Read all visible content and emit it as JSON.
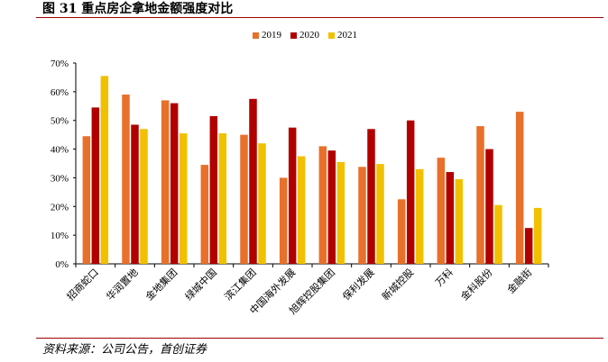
{
  "figure": {
    "title": "图 31 重点房企拿地金额强度对比",
    "source": "资料来源：公司公告，首创证券"
  },
  "colors": {
    "rule": "#a10000",
    "s2019": "#e8702a",
    "s2020": "#b00000",
    "s2021": "#f1c000"
  },
  "chart_data": {
    "type": "bar",
    "title": "",
    "xlabel": "",
    "ylabel": "",
    "ylim": [
      0,
      70
    ],
    "yticks": [
      "0%",
      "10%",
      "20%",
      "30%",
      "40%",
      "50%",
      "60%",
      "70%"
    ],
    "legend_position": "top-center",
    "grid": false,
    "categories": [
      "招商蛇口",
      "华润置地",
      "金地集团",
      "绿城中国",
      "滨江集团",
      "中国海外发展",
      "旭辉控股集团",
      "保利发展",
      "新城控股",
      "万科",
      "金科股份",
      "金融街"
    ],
    "series": [
      {
        "name": "2019",
        "color": "#e8702a",
        "values": [
          44.5,
          59,
          57,
          34.5,
          45,
          30,
          41,
          33.8,
          22.5,
          37,
          48,
          53
        ]
      },
      {
        "name": "2020",
        "color": "#b00000",
        "values": [
          54.5,
          48.5,
          56,
          51.5,
          57.5,
          47.5,
          39.5,
          47,
          50,
          32,
          40,
          12.5
        ]
      },
      {
        "name": "2021",
        "color": "#f1c000",
        "values": [
          65.5,
          47,
          45.5,
          45.5,
          42,
          37.5,
          35.5,
          34.8,
          33,
          29.5,
          20.5,
          19.5
        ]
      }
    ]
  }
}
